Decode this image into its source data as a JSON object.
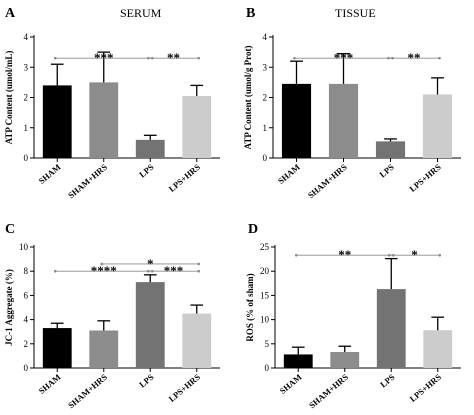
{
  "chart_data": [
    {
      "panel": "A",
      "title": "SERUM",
      "type": "bar",
      "ylabel": "ATP Content (umol/mL)",
      "ylim": [
        0,
        4
      ],
      "yticks": [
        "0",
        "1",
        "2",
        "3",
        "4"
      ],
      "categories": [
        "SHAM",
        "SHAM+HRS",
        "LPS",
        "LPS+HRS"
      ],
      "values": [
        2.4,
        2.5,
        0.6,
        2.05
      ],
      "errors": [
        0.7,
        1.0,
        0.15,
        0.35
      ],
      "colors": [
        "#000000",
        "#8c8c8c",
        "#737373",
        "#cccccc"
      ],
      "significance": [
        {
          "from": 0,
          "to": 2,
          "label": "***",
          "y": 3.3
        },
        {
          "from": 2,
          "to": 3,
          "label": "**",
          "y": 3.3
        }
      ]
    },
    {
      "panel": "B",
      "title": "TISSUE",
      "type": "bar",
      "ylabel": "ATP Content (umol/g Prot)",
      "ylim": [
        0,
        4
      ],
      "yticks": [
        "0",
        "1",
        "2",
        "3",
        "4"
      ],
      "categories": [
        "SHAM",
        "SHAM+HRS",
        "LPS",
        "LPS+HRS"
      ],
      "values": [
        2.45,
        2.45,
        0.55,
        2.1
      ],
      "errors": [
        0.75,
        1.0,
        0.08,
        0.55
      ],
      "colors": [
        "#000000",
        "#8c8c8c",
        "#737373",
        "#cccccc"
      ],
      "significance": [
        {
          "from": 0,
          "to": 2,
          "label": "***",
          "y": 3.3
        },
        {
          "from": 2,
          "to": 3,
          "label": "**",
          "y": 3.3
        }
      ]
    },
    {
      "panel": "C",
      "title": "",
      "type": "bar",
      "ylabel": "JC-1 Aggregate (%)",
      "ylim": [
        0,
        10
      ],
      "yticks": [
        "0",
        "2",
        "4",
        "6",
        "8",
        "10"
      ],
      "categories": [
        "SHAM",
        "SHAM+HRS",
        "LPS",
        "LPS+HRS"
      ],
      "values": [
        3.3,
        3.1,
        7.1,
        4.5
      ],
      "errors": [
        0.4,
        0.8,
        0.6,
        0.7
      ],
      "colors": [
        "#000000",
        "#8c8c8c",
        "#737373",
        "#cccccc"
      ],
      "significance": [
        {
          "from": 1,
          "to": 3,
          "label": "*",
          "y": 8.6
        },
        {
          "from": 0,
          "to": 2,
          "label": "****",
          "y": 8.0
        },
        {
          "from": 2,
          "to": 3,
          "label": "***",
          "y": 8.0
        }
      ]
    },
    {
      "panel": "D",
      "title": "",
      "type": "bar",
      "ylabel": "ROS (% of sham)",
      "ylim": [
        0,
        25
      ],
      "yticks": [
        "0",
        "5",
        "10",
        "15",
        "20",
        "25"
      ],
      "categories": [
        "SHAM",
        "SHAM+HRS",
        "LPS",
        "LPS+HRS"
      ],
      "values": [
        2.8,
        3.3,
        16.3,
        7.8
      ],
      "errors": [
        1.5,
        1.2,
        6.3,
        2.7
      ],
      "colors": [
        "#000000",
        "#8c8c8c",
        "#737373",
        "#cccccc"
      ],
      "significance": [
        {
          "from": 0,
          "to": 2,
          "label": "**",
          "y": 23.3
        },
        {
          "from": 2,
          "to": 3,
          "label": "*",
          "y": 23.3
        }
      ]
    }
  ]
}
